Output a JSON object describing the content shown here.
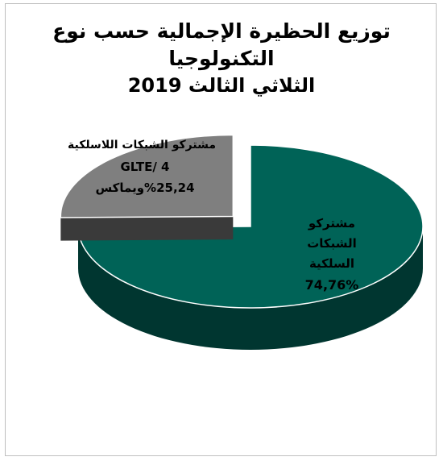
{
  "chart_data": {
    "type": "pie",
    "title_line1": "توزيع الحظيرة الإجمالية حسب نوع",
    "title_line2": "التكنولوجيا",
    "title_line3": "الثلاثي الثالث 2019",
    "slices": [
      {
        "label_lines": [
          "مشتركو",
          "الشبكات",
          "السلكية"
        ],
        "value": 74.76,
        "value_text": "74,76%",
        "color": "#006357"
      },
      {
        "label_lines": [
          "مشتركو الشبكات اللاسلكية",
          "GLTE/ 4",
          "%25,24ويماكس"
        ],
        "value": 25.24,
        "value_text": "",
        "color": "#7f7f7f"
      }
    ]
  }
}
